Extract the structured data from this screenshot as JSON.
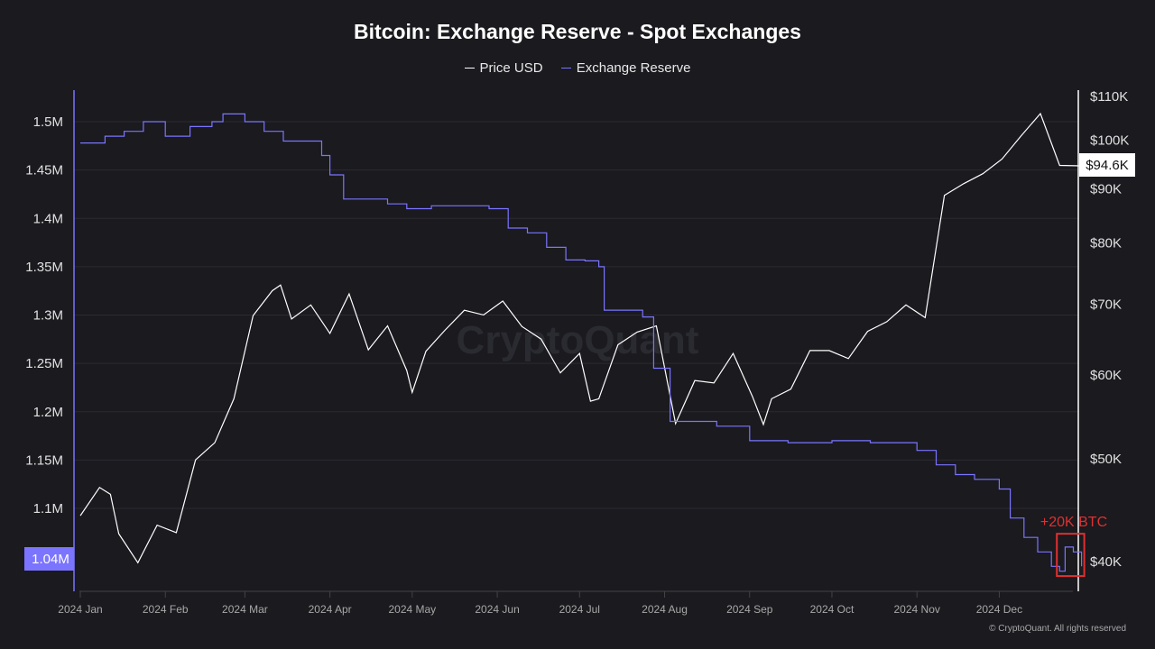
{
  "chart_data": {
    "type": "line",
    "title": "Bitcoin: Exchange Reserve - Spot Exchanges",
    "legend": "top",
    "grid": true,
    "x_ticks": [
      "2024 Jan",
      "2024 Feb",
      "2024 Mar",
      "2024 Apr",
      "2024 May",
      "2024 Jun",
      "2024 Jul",
      "2024 Aug",
      "2024 Sep",
      "2024 Oct",
      "2024 Nov",
      "2024 Dec"
    ],
    "x_tick_dates": [
      "2024-01-01",
      "2024-02-01",
      "2024-03-01",
      "2024-04-01",
      "2024-05-01",
      "2024-06-01",
      "2024-07-01",
      "2024-08-01",
      "2024-09-01",
      "2024-10-01",
      "2024-11-01",
      "2024-12-01"
    ],
    "xlim": [
      "2024-01-01",
      "2024-12-31"
    ],
    "left_axis": {
      "ticks": [
        "1.1M",
        "1.15M",
        "1.2M",
        "1.25M",
        "1.3M",
        "1.35M",
        "1.4M",
        "1.45M",
        "1.5M"
      ],
      "tick_values": [
        1.1,
        1.15,
        1.2,
        1.25,
        1.3,
        1.35,
        1.4,
        1.45,
        1.5
      ],
      "ylim": [
        1.005,
        1.54
      ],
      "unit": "M",
      "current_label": "1.04M",
      "color": "#7b74ff"
    },
    "right_axis": {
      "scale": "log",
      "ticks": [
        "$40K",
        "$50K",
        "$60K",
        "$70K",
        "$80K",
        "$90K",
        "$100K",
        "$110K"
      ],
      "tick_values": [
        40,
        50,
        60,
        70,
        80,
        90,
        100,
        110
      ],
      "ylim": [
        37.5,
        111
      ],
      "unit": "K USD",
      "current_label": "$94.6K"
    },
    "series": [
      {
        "name": "Price USD",
        "axis": "right",
        "color": "#ffffff",
        "dates": [
          "2024-01-01",
          "2024-01-08",
          "2024-01-12",
          "2024-01-15",
          "2024-01-22",
          "2024-01-29",
          "2024-02-05",
          "2024-02-12",
          "2024-02-19",
          "2024-02-26",
          "2024-03-04",
          "2024-03-11",
          "2024-03-14",
          "2024-03-18",
          "2024-03-25",
          "2024-04-01",
          "2024-04-08",
          "2024-04-15",
          "2024-04-22",
          "2024-04-29",
          "2024-05-01",
          "2024-05-06",
          "2024-05-13",
          "2024-05-20",
          "2024-05-27",
          "2024-06-03",
          "2024-06-10",
          "2024-06-17",
          "2024-06-24",
          "2024-07-01",
          "2024-07-05",
          "2024-07-08",
          "2024-07-15",
          "2024-07-22",
          "2024-07-29",
          "2024-08-05",
          "2024-08-12",
          "2024-08-19",
          "2024-08-26",
          "2024-09-02",
          "2024-09-06",
          "2024-09-09",
          "2024-09-16",
          "2024-09-23",
          "2024-09-30",
          "2024-10-07",
          "2024-10-14",
          "2024-10-21",
          "2024-10-28",
          "2024-11-04",
          "2024-11-11",
          "2024-11-18",
          "2024-11-25",
          "2024-12-02",
          "2024-12-09",
          "2024-12-16",
          "2024-12-23",
          "2024-12-31"
        ],
        "values": [
          44.2,
          47.0,
          46.3,
          42.5,
          39.9,
          43.3,
          42.6,
          49.9,
          51.8,
          57.0,
          68.3,
          72.1,
          73.0,
          67.8,
          69.9,
          65.7,
          71.6,
          63.4,
          66.8,
          60.6,
          57.8,
          63.2,
          66.2,
          69.1,
          68.4,
          70.5,
          66.7,
          64.9,
          60.3,
          62.9,
          56.7,
          57.0,
          64.1,
          65.9,
          66.8,
          54.0,
          59.3,
          59.0,
          62.9,
          57.3,
          53.9,
          57.0,
          58.2,
          63.3,
          63.3,
          62.2,
          66.0,
          67.4,
          69.9,
          68.0,
          88.7,
          91.0,
          93.0,
          96.0,
          101.0,
          106.0,
          94.7,
          94.6
        ]
      },
      {
        "name": "Exchange Reserve",
        "axis": "left",
        "color": "#7b74ff",
        "dates": [
          "2024-01-01",
          "2024-01-10",
          "2024-01-17",
          "2024-01-24",
          "2024-02-01",
          "2024-02-10",
          "2024-02-18",
          "2024-02-22",
          "2024-03-01",
          "2024-03-08",
          "2024-03-15",
          "2024-03-22",
          "2024-03-29",
          "2024-04-01",
          "2024-04-06",
          "2024-04-15",
          "2024-04-22",
          "2024-04-29",
          "2024-05-08",
          "2024-05-15",
          "2024-05-22",
          "2024-05-29",
          "2024-06-05",
          "2024-06-12",
          "2024-06-19",
          "2024-06-26",
          "2024-07-03",
          "2024-07-08",
          "2024-07-10",
          "2024-07-17",
          "2024-07-24",
          "2024-07-28",
          "2024-08-03",
          "2024-08-10",
          "2024-08-20",
          "2024-08-27",
          "2024-09-01",
          "2024-09-15",
          "2024-10-01",
          "2024-10-15",
          "2024-11-01",
          "2024-11-08",
          "2024-11-15",
          "2024-11-22",
          "2024-12-01",
          "2024-12-05",
          "2024-12-10",
          "2024-12-15",
          "2024-12-20",
          "2024-12-23",
          "2024-12-25",
          "2024-12-28",
          "2024-12-31"
        ],
        "values": [
          1.478,
          1.485,
          1.49,
          1.5,
          1.485,
          1.495,
          1.5,
          1.508,
          1.5,
          1.49,
          1.48,
          1.48,
          1.465,
          1.445,
          1.42,
          1.42,
          1.415,
          1.41,
          1.413,
          1.413,
          1.413,
          1.41,
          1.39,
          1.385,
          1.37,
          1.357,
          1.356,
          1.35,
          1.305,
          1.305,
          1.298,
          1.245,
          1.19,
          1.19,
          1.185,
          1.185,
          1.17,
          1.168,
          1.17,
          1.168,
          1.16,
          1.145,
          1.135,
          1.13,
          1.12,
          1.09,
          1.07,
          1.055,
          1.04,
          1.035,
          1.06,
          1.055,
          1.04
        ]
      }
    ],
    "annotation": {
      "text": "+20K BTC",
      "color": "#e03030",
      "from": "2024-12-22",
      "to": "2024-12-31",
      "range": [
        1.03,
        1.07
      ]
    },
    "watermark": "CryptoQuant"
  },
  "copyright": "© CryptoQuant. All rights reserved"
}
